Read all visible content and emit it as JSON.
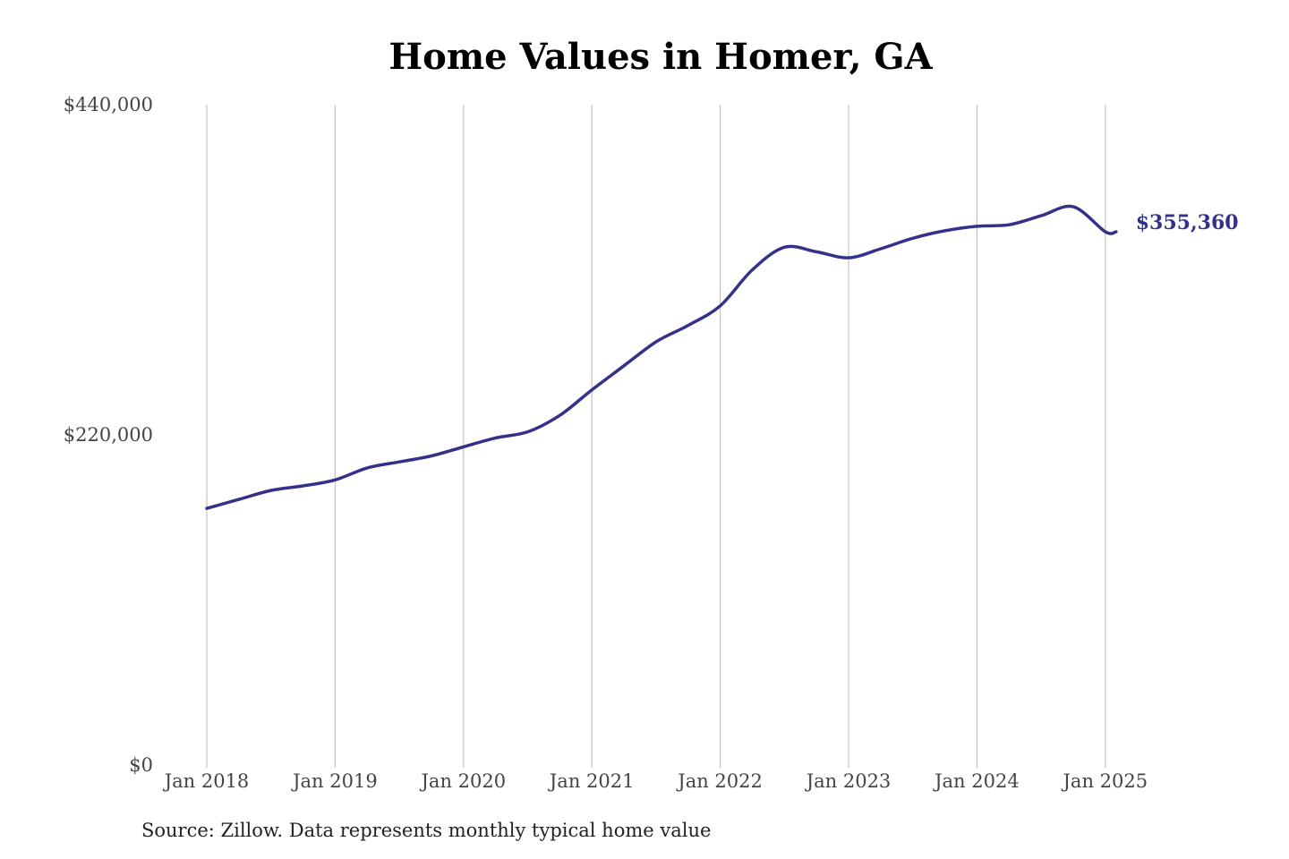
{
  "chart_data": {
    "type": "line",
    "title": "Home Values in Homer, GA",
    "xlabel": "",
    "ylabel": "",
    "ylim": [
      0,
      440000
    ],
    "yticks": [
      0,
      220000,
      440000
    ],
    "ytick_labels": [
      "$0",
      "$220,000",
      "$440,000"
    ],
    "xticks": [
      "2018-01",
      "2019-01",
      "2020-01",
      "2021-01",
      "2022-01",
      "2023-01",
      "2024-01",
      "2025-01"
    ],
    "xtick_labels": [
      "Jan 2018",
      "Jan 2019",
      "Jan 2020",
      "Jan 2021",
      "Jan 2022",
      "Jan 2023",
      "Jan 2024",
      "Jan 2025"
    ],
    "grid": "vertical",
    "series": [
      {
        "color": "#34318a",
        "x": [
          "2018-01",
          "2018-04",
          "2018-07",
          "2018-10",
          "2019-01",
          "2019-04",
          "2019-07",
          "2019-10",
          "2020-01",
          "2020-04",
          "2020-07",
          "2020-10",
          "2021-01",
          "2021-04",
          "2021-07",
          "2021-10",
          "2022-01",
          "2022-04",
          "2022-07",
          "2022-10",
          "2023-01",
          "2023-04",
          "2023-07",
          "2023-10",
          "2024-01",
          "2024-04",
          "2024-07",
          "2024-10",
          "2025-01",
          "2025-02"
        ],
        "values": [
          171000,
          177000,
          183000,
          186000,
          190000,
          198000,
          202000,
          206000,
          212000,
          218000,
          222000,
          233000,
          250000,
          266000,
          282000,
          293000,
          306000,
          330000,
          345000,
          342000,
          338000,
          344000,
          351000,
          356000,
          359000,
          360000,
          366000,
          372000,
          355360,
          355360
        ],
        "end_value": 355360,
        "end_label": "$355,360"
      }
    ]
  },
  "source_note": "Source: Zillow. Data represents monthly typical home value"
}
